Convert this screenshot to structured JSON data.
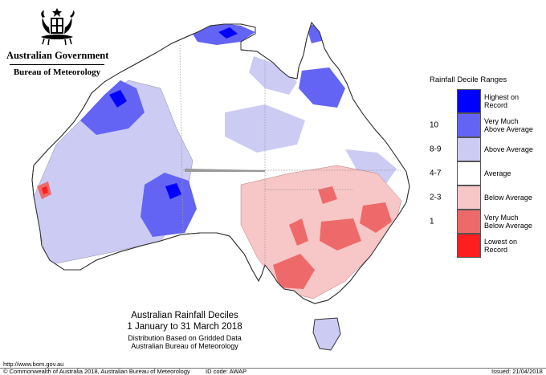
{
  "header": {
    "government": "Australian Government",
    "bureau": "Bureau of Meteorology",
    "crest_icon": "coat-of-arms-icon"
  },
  "legend": {
    "title": "Rainfall Decile Ranges",
    "items": [
      {
        "code": "",
        "label": "Highest on\nRecord",
        "color": "#0000ff"
      },
      {
        "code": "10",
        "label": "Very Much\nAbove Average",
        "color": "#6464f4"
      },
      {
        "code": "8-9",
        "label": "Above Average",
        "color": "#cbcbf4"
      },
      {
        "code": "4-7",
        "label": "Average",
        "color": "#ffffff"
      },
      {
        "code": "2-3",
        "label": "Below Average",
        "color": "#f7c6c6"
      },
      {
        "code": "1",
        "label": "Very Much\nBelow Average",
        "color": "#ee6a6a"
      },
      {
        "code": "",
        "label": "Lowest on\nRecord",
        "color": "#ff1e1e"
      }
    ]
  },
  "map_title": {
    "line1": "Australian Rainfall Deciles",
    "line2": "1 January to 31 March 2018",
    "line3": "Distribution Based on Gridded Data",
    "line4": "Australian Bureau of Meteorology"
  },
  "footer": {
    "url": "http://www.bom.gov.au",
    "copyright": "© Commonwealth of Australia 2018, Australian Bureau of Meteorology",
    "id_code": "ID code: AWAP",
    "issued": "Issued: 21/04/2018"
  }
}
